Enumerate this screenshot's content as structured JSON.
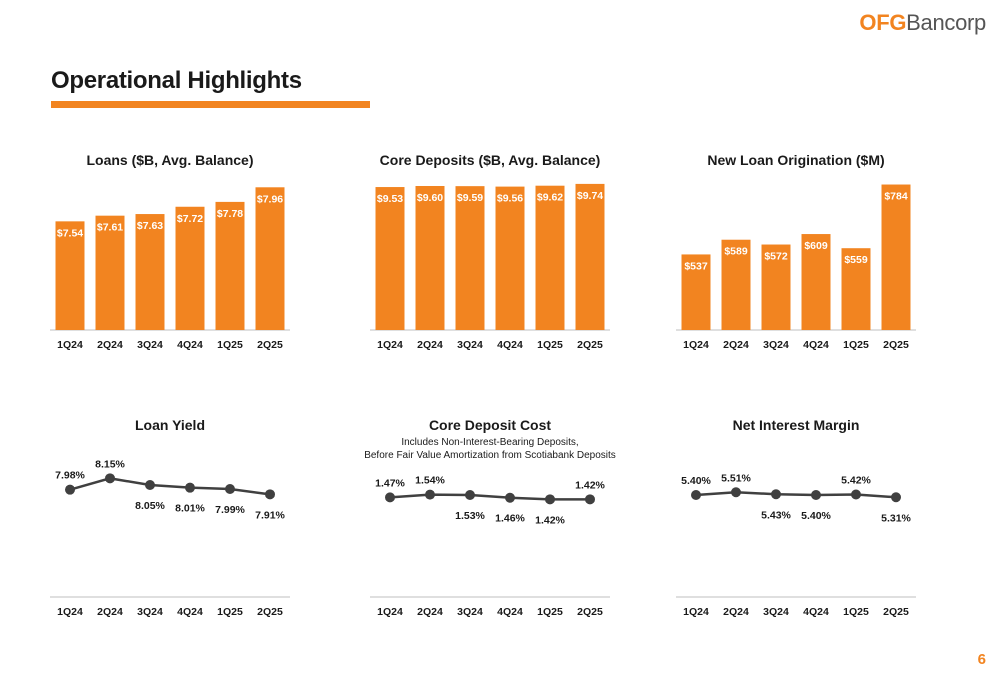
{
  "header": {
    "logo_main": "OFG",
    "logo_rest": "Bancorp",
    "page_title": "Operational Highlights",
    "page_number": "6"
  },
  "colors": {
    "accent": "#f28420",
    "line": "#404040",
    "axis": "#bfbfbf"
  },
  "chart_data": [
    {
      "type": "bar",
      "title": "Loans ($B, Avg. Balance)",
      "categories": [
        "1Q24",
        "2Q24",
        "3Q24",
        "4Q24",
        "1Q25",
        "2Q25"
      ],
      "values": [
        7.54,
        7.61,
        7.63,
        7.72,
        7.78,
        7.96
      ],
      "data_labels": [
        "$7.54",
        "$7.61",
        "$7.63",
        "$7.72",
        "$7.78",
        "$7.96"
      ],
      "ylim": [
        6.2,
        8.05
      ],
      "grid": false,
      "legend": "none"
    },
    {
      "type": "bar",
      "title": "Core Deposits ($B, Avg. Balance)",
      "categories": [
        "1Q24",
        "2Q24",
        "3Q24",
        "4Q24",
        "1Q25",
        "2Q25"
      ],
      "values": [
        9.53,
        9.6,
        9.59,
        9.56,
        9.62,
        9.74
      ],
      "data_labels": [
        "$9.53",
        "$9.60",
        "$9.59",
        "$9.56",
        "$9.62",
        "$9.74"
      ],
      "ylim": [
        0,
        10
      ],
      "grid": false,
      "legend": "none"
    },
    {
      "type": "bar",
      "title": "New Loan Origination ($M)",
      "categories": [
        "1Q24",
        "2Q24",
        "3Q24",
        "4Q24",
        "1Q25",
        "2Q25"
      ],
      "values": [
        537,
        589,
        572,
        609,
        559,
        784
      ],
      "data_labels": [
        "$537",
        "$589",
        "$572",
        "$609",
        "$559",
        "$784"
      ],
      "ylim": [
        270,
        800
      ],
      "grid": false,
      "legend": "none"
    },
    {
      "type": "line",
      "title": "Loan Yield",
      "categories": [
        "1Q24",
        "2Q24",
        "3Q24",
        "4Q24",
        "1Q25",
        "2Q25"
      ],
      "values": [
        7.98,
        8.15,
        8.05,
        8.01,
        7.99,
        7.91
      ],
      "data_labels": [
        "7.98%",
        "8.15%",
        "8.05%",
        "8.01%",
        "7.99%",
        "7.91%"
      ],
      "ylim": [
        7.0,
        8.5
      ],
      "grid": false,
      "legend": "none"
    },
    {
      "type": "line",
      "title": "Core Deposit Cost",
      "subtitle": [
        "Includes Non-Interest-Bearing Deposits,",
        "Before Fair Value Amortization from Scotiabank Deposits"
      ],
      "categories": [
        "1Q24",
        "2Q24",
        "3Q24",
        "4Q24",
        "1Q25",
        "2Q25"
      ],
      "values": [
        1.47,
        1.54,
        1.53,
        1.46,
        1.42,
        1.42
      ],
      "data_labels": [
        "1.47%",
        "1.54%",
        "1.53%",
        "1.46%",
        "1.42%",
        "1.42%"
      ],
      "ylim": [
        0.0,
        2.55
      ],
      "grid": false,
      "legend": "none"
    },
    {
      "type": "line",
      "title": "Net Interest Margin",
      "categories": [
        "1Q24",
        "2Q24",
        "3Q24",
        "4Q24",
        "1Q25",
        "2Q25"
      ],
      "values": [
        5.4,
        5.51,
        5.43,
        5.4,
        5.42,
        5.31
      ],
      "data_labels": [
        "5.40%",
        "5.51%",
        "5.43%",
        "5.40%",
        "5.42%",
        "5.31%"
      ],
      "ylim": [
        3.0,
        7.0
      ],
      "grid": false,
      "legend": "none"
    }
  ]
}
